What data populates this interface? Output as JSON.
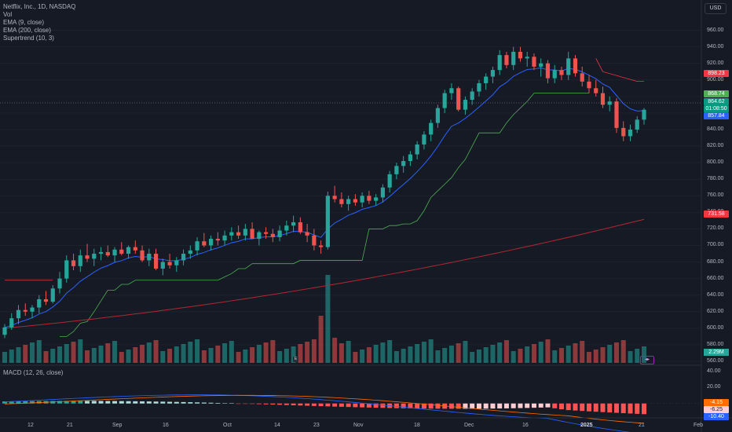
{
  "legend": {
    "symbol": "Netflix, Inc., 1D, NASDAQ",
    "vol": "Vol",
    "ema9": "EMA (9, close)",
    "ema200": "EMA (200, close)",
    "supertrend": "Supertrend (10, 3)"
  },
  "macd_legend": "MACD (12, 26, close)",
  "currency": "USD",
  "y_ticks": [
    "960.00",
    "940.00",
    "920.00",
    "900.00",
    "880.00",
    "860.00",
    "840.00",
    "820.00",
    "800.00",
    "780.00",
    "760.00",
    "740.00",
    "720.00",
    "700.00",
    "680.00",
    "660.00",
    "640.00",
    "620.00",
    "600.00",
    "580.00",
    "560.00"
  ],
  "macd_ticks": [
    "40.00",
    "20.00"
  ],
  "x_ticks": [
    "12",
    "21",
    "Sep",
    "16",
    "Oct",
    "14",
    "23",
    "Nov",
    "18",
    "Dec",
    "16",
    "2025",
    "21",
    "Feb"
  ],
  "price_tags": {
    "supertrend_top": "898.23",
    "ema9": "868.74",
    "last_price": "864.62",
    "countdown": "01:08:50",
    "prev": "857.84",
    "ema200": "731.58",
    "volume": "2.29M",
    "macd_signal": "-4.15",
    "macd_hist": "-6.25",
    "macd_line": "-10.40"
  },
  "event_badge": "E",
  "colors": {
    "up": "#26a69a",
    "down": "#ef5350",
    "ema9": "#2962ff",
    "ema200": "#b22833",
    "macd": "#2962ff",
    "signal": "#ff6d00"
  },
  "chart_data": {
    "type": "candlestick",
    "series": [
      {
        "name": "Netflix, Inc., 1D, NASDAQ",
        "ohlc": [
          [
            592,
            605,
            588,
            601
          ],
          [
            601,
            618,
            598,
            612
          ],
          [
            612,
            628,
            605,
            622
          ],
          [
            622,
            630,
            615,
            620
          ],
          [
            620,
            628,
            612,
            625
          ],
          [
            625,
            640,
            618,
            635
          ],
          [
            635,
            645,
            628,
            632
          ],
          [
            632,
            652,
            630,
            648
          ],
          [
            648,
            668,
            642,
            660
          ],
          [
            660,
            688,
            655,
            682
          ],
          [
            682,
            690,
            670,
            675
          ],
          [
            675,
            695,
            668,
            688
          ],
          [
            688,
            702,
            680,
            684
          ],
          [
            684,
            696,
            675,
            690
          ],
          [
            690,
            698,
            682,
            692
          ],
          [
            692,
            700,
            686,
            688
          ],
          [
            688,
            698,
            680,
            695
          ],
          [
            695,
            704,
            688,
            690
          ],
          [
            690,
            700,
            684,
            698
          ],
          [
            698,
            706,
            690,
            694
          ],
          [
            694,
            700,
            680,
            682
          ],
          [
            682,
            696,
            675,
            690
          ],
          [
            690,
            696,
            670,
            672
          ],
          [
            672,
            684,
            664,
            680
          ],
          [
            680,
            690,
            672,
            676
          ],
          [
            676,
            686,
            668,
            682
          ],
          [
            682,
            695,
            676,
            690
          ],
          [
            690,
            700,
            684,
            694
          ],
          [
            694,
            710,
            688,
            705
          ],
          [
            705,
            715,
            698,
            700
          ],
          [
            700,
            712,
            694,
            708
          ],
          [
            708,
            716,
            700,
            706
          ],
          [
            706,
            718,
            700,
            712
          ],
          [
            712,
            722,
            706,
            716
          ],
          [
            716,
            724,
            708,
            712
          ],
          [
            712,
            726,
            706,
            720
          ],
          [
            720,
            728,
            712,
            708
          ],
          [
            708,
            718,
            700,
            716
          ],
          [
            716,
            722,
            708,
            714
          ],
          [
            714,
            720,
            704,
            710
          ],
          [
            710,
            724,
            705,
            718
          ],
          [
            718,
            730,
            712,
            724
          ],
          [
            724,
            736,
            716,
            728
          ],
          [
            728,
            734,
            714,
            716
          ],
          [
            716,
            726,
            704,
            712
          ],
          [
            712,
            720,
            694,
            700
          ],
          [
            700,
            706,
            690,
            698
          ],
          [
            698,
            765,
            695,
            760
          ],
          [
            760,
            772,
            752,
            756
          ],
          [
            756,
            764,
            746,
            750
          ],
          [
            750,
            760,
            742,
            756
          ],
          [
            756,
            762,
            748,
            752
          ],
          [
            752,
            764,
            746,
            760
          ],
          [
            760,
            766,
            750,
            754
          ],
          [
            754,
            762,
            748,
            758
          ],
          [
            758,
            774,
            752,
            770
          ],
          [
            770,
            790,
            764,
            786
          ],
          [
            786,
            800,
            780,
            796
          ],
          [
            796,
            808,
            788,
            802
          ],
          [
            802,
            814,
            796,
            810
          ],
          [
            810,
            826,
            804,
            822
          ],
          [
            822,
            838,
            816,
            834
          ],
          [
            834,
            852,
            826,
            848
          ],
          [
            848,
            870,
            842,
            866
          ],
          [
            866,
            888,
            860,
            884
          ],
          [
            884,
            896,
            876,
            890
          ],
          [
            890,
            892,
            862,
            864
          ],
          [
            864,
            880,
            858,
            876
          ],
          [
            876,
            890,
            870,
            886
          ],
          [
            886,
            900,
            880,
            896
          ],
          [
            896,
            908,
            888,
            904
          ],
          [
            904,
            916,
            896,
            912
          ],
          [
            912,
            936,
            906,
            930
          ],
          [
            930,
            934,
            914,
            918
          ],
          [
            918,
            940,
            912,
            934
          ],
          [
            934,
            940,
            922,
            926
          ],
          [
            926,
            934,
            916,
            928
          ],
          [
            928,
            932,
            912,
            916
          ],
          [
            916,
            926,
            904,
            920
          ],
          [
            920,
            924,
            896,
            902
          ],
          [
            902,
            918,
            896,
            912
          ],
          [
            912,
            916,
            900,
            906
          ],
          [
            906,
            934,
            900,
            926
          ],
          [
            926,
            930,
            904,
            908
          ],
          [
            908,
            916,
            892,
            898
          ],
          [
            898,
            906,
            884,
            890
          ],
          [
            890,
            900,
            880,
            884
          ],
          [
            884,
            892,
            866,
            870
          ],
          [
            870,
            880,
            862,
            874
          ],
          [
            874,
            878,
            836,
            842
          ],
          [
            842,
            850,
            826,
            832
          ],
          [
            832,
            846,
            826,
            840
          ],
          [
            840,
            856,
            836,
            852
          ],
          [
            852,
            866,
            846,
            864
          ]
        ]
      },
      {
        "name": "EMA (200, close)",
        "start": 600,
        "end": 731.58
      }
    ],
    "ylim": [
      560,
      970
    ],
    "macd": {
      "name": "MACD (12, 26, close)",
      "ylim": [
        -18,
        45
      ]
    }
  }
}
